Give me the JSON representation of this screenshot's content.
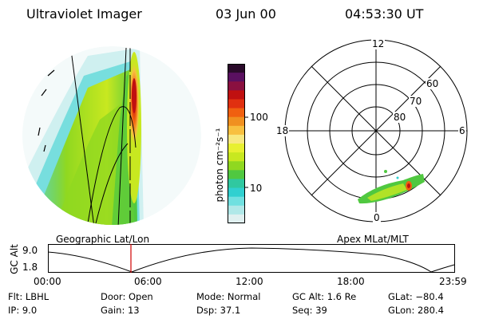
{
  "header": {
    "instrument": "Ultraviolet Imager",
    "date": "03 Jun 00",
    "time": "04:53:30 UT"
  },
  "colorbar": {
    "label": "photon cm⁻²s⁻¹",
    "ticks": [
      "100",
      "10"
    ],
    "colors": [
      "#2a0a2a",
      "#5a1060",
      "#8a1040",
      "#c01010",
      "#e03010",
      "#f06010",
      "#f09020",
      "#f8c040",
      "#f8e880",
      "#e8f030",
      "#c8e820",
      "#90d820",
      "#50c840",
      "#30c8a0",
      "#30d0d0",
      "#70e0e0",
      "#b0e8e8",
      "#e0f0f0"
    ]
  },
  "left_panel": {
    "caption": "Geographic Lat/Lon"
  },
  "right_panel": {
    "caption": "Apex MLat/MLT",
    "mlt_labels": {
      "top": "12",
      "left": "18",
      "right": "6",
      "bottom": "0"
    },
    "mlat_labels": [
      "60",
      "70",
      "80"
    ]
  },
  "gc_alt_plot": {
    "ylabel": "GC Alt",
    "y_ticks": [
      "9.0",
      "1.8"
    ],
    "x_ticks": [
      "00:00",
      "06:00",
      "12:00",
      "18:00",
      "23:59"
    ],
    "current_time_marker": "04:53"
  },
  "footer": {
    "flt": "Flt: LBHL",
    "ip": "IP:  9.0",
    "door": "Door: Open",
    "gain": "Gain: 13",
    "mode": "Mode: Normal",
    "dsp": "Dsp:   37.1",
    "gcalt": "GC Alt: 1.6 Re",
    "seq": "Seq: 39",
    "glat": "GLat: −80.4",
    "glon": "GLon: 280.4"
  }
}
